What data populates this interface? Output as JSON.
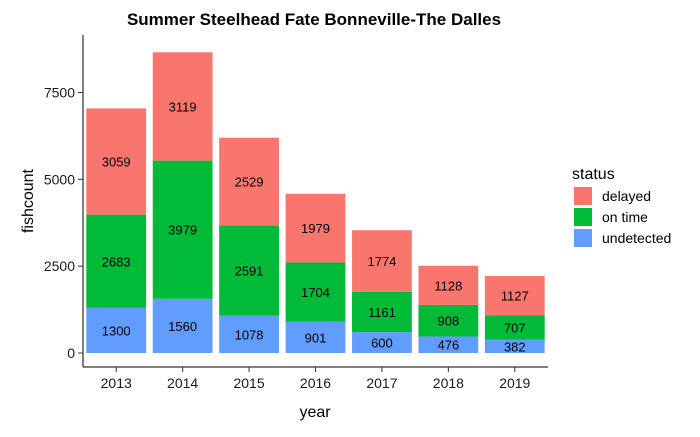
{
  "chart_data": {
    "type": "bar",
    "stacked": true,
    "title": "Summer Steelhead Fate Bonneville-The Dalles",
    "xlabel": "year",
    "ylabel": "fishcount",
    "categories": [
      "2013",
      "2014",
      "2015",
      "2016",
      "2017",
      "2018",
      "2019"
    ],
    "series": [
      {
        "name": "undetected",
        "color": "#619CFF",
        "values": [
          1300,
          1560,
          1078,
          901,
          600,
          476,
          382
        ]
      },
      {
        "name": "on time",
        "color": "#00BA38",
        "values": [
          2683,
          3979,
          2591,
          1704,
          1161,
          908,
          707
        ]
      },
      {
        "name": "delayed",
        "color": "#F8766D",
        "values": [
          3059,
          3119,
          2529,
          1979,
          1774,
          1128,
          1127
        ]
      }
    ],
    "ylim": [
      0,
      9000
    ],
    "yticks": [
      0,
      2500,
      5000,
      7500
    ],
    "ytick_labels": [
      "0",
      "2500",
      "5000",
      "7500"
    ],
    "legend": {
      "title": "status",
      "position": "right",
      "items": [
        {
          "label": "delayed",
          "color": "#F8766D"
        },
        {
          "label": "on time",
          "color": "#00BA38"
        },
        {
          "label": "undetected",
          "color": "#619CFF"
        }
      ]
    },
    "data_labels": true,
    "grid": false
  }
}
